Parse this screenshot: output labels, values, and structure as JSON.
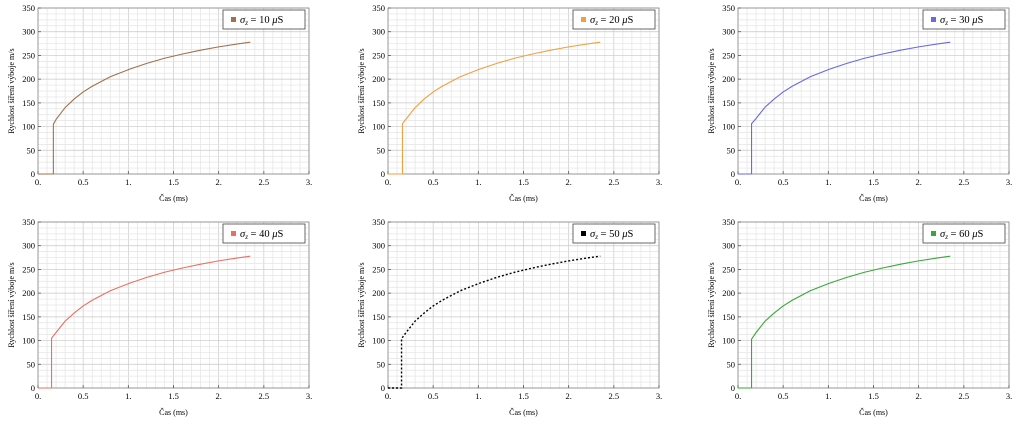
{
  "chart_data": [
    {
      "type": "line",
      "legend": "σz = 10 μS",
      "legend_parts": {
        "sym": "σ",
        "sub": "z",
        "rest": " = 10 ",
        "mu": "μ",
        "unit": "S"
      },
      "xlabel": "Čas (ms)",
      "ylabel": "Rychlost šíření výboje m/s",
      "xlim": [
        0,
        3
      ],
      "ylim": [
        0,
        350
      ],
      "xticks": [
        "0.",
        "0.5",
        "1.",
        "1.5",
        "2.",
        "2.5",
        "3."
      ],
      "yticks": [
        "0",
        "50",
        "100",
        "150",
        "200",
        "250",
        "300",
        "350"
      ],
      "grid": true,
      "legend_position": "top-right",
      "series": [
        {
          "color": "#a0714e",
          "style": "solid",
          "x": [
            0.0,
            0.17,
            0.17,
            0.2,
            0.3,
            0.4,
            0.5,
            0.6,
            0.8,
            1.0,
            1.2,
            1.4,
            1.6,
            1.8,
            2.0,
            2.2,
            2.35
          ],
          "y": [
            0,
            0,
            105,
            115,
            140,
            158,
            173,
            185,
            205,
            220,
            233,
            244,
            253,
            261,
            268,
            274,
            278
          ]
        }
      ]
    },
    {
      "type": "line",
      "legend": "σz = 20 μS",
      "legend_parts": {
        "sym": "σ",
        "sub": "z",
        "rest": " = 20 ",
        "mu": "μ",
        "unit": "S"
      },
      "xlabel": "Čas (ms)",
      "ylabel": "Rychlost šíření výboje m/s",
      "xlim": [
        0,
        3
      ],
      "ylim": [
        0,
        350
      ],
      "xticks": [
        "0.",
        "0.5",
        "1.",
        "1.5",
        "2.",
        "2.5",
        "3."
      ],
      "yticks": [
        "0",
        "50",
        "100",
        "150",
        "200",
        "250",
        "300",
        "350"
      ],
      "grid": true,
      "legend_position": "top-right",
      "series": [
        {
          "color": "#f0a040",
          "style": "solid",
          "x": [
            0.0,
            0.16,
            0.16,
            0.2,
            0.3,
            0.4,
            0.5,
            0.6,
            0.8,
            1.0,
            1.2,
            1.4,
            1.6,
            1.8,
            2.0,
            2.2,
            2.35
          ],
          "y": [
            0,
            0,
            106,
            116,
            140,
            158,
            173,
            185,
            205,
            220,
            233,
            244,
            253,
            261,
            268,
            274,
            278
          ]
        }
      ]
    },
    {
      "type": "line",
      "legend": "σz = 30 μS",
      "legend_parts": {
        "sym": "σ",
        "sub": "z",
        "rest": " = 30 ",
        "mu": "μ",
        "unit": "S"
      },
      "xlabel": "Čas (ms)",
      "ylabel": "Rychlost šíření výboje m/s",
      "xlim": [
        0,
        3
      ],
      "ylim": [
        0,
        350
      ],
      "xticks": [
        "0.",
        "0.5",
        "1.",
        "1.5",
        "2.",
        "2.5",
        "3."
      ],
      "yticks": [
        "0",
        "50",
        "100",
        "150",
        "200",
        "250",
        "300",
        "350"
      ],
      "grid": true,
      "legend_position": "top-right",
      "series": [
        {
          "color": "#6a6ae0",
          "style": "solid",
          "x": [
            0.0,
            0.15,
            0.15,
            0.2,
            0.3,
            0.4,
            0.5,
            0.6,
            0.8,
            1.0,
            1.2,
            1.4,
            1.6,
            1.8,
            2.0,
            2.2,
            2.35
          ],
          "y": [
            0,
            0,
            106,
            117,
            141,
            158,
            173,
            185,
            205,
            220,
            233,
            244,
            253,
            261,
            268,
            274,
            278
          ]
        }
      ]
    },
    {
      "type": "line",
      "legend": "σz = 40 μS",
      "legend_parts": {
        "sym": "σ",
        "sub": "z",
        "rest": " = 40 ",
        "mu": "μ",
        "unit": "S"
      },
      "xlabel": "Čas (ms)",
      "ylabel": "Rychlost šíření výboje m/s",
      "xlim": [
        0,
        3
      ],
      "ylim": [
        0,
        350
      ],
      "xticks": [
        "0.",
        "0.5",
        "1.",
        "1.5",
        "2.",
        "2.5",
        "3."
      ],
      "yticks": [
        "0",
        "50",
        "100",
        "150",
        "200",
        "250",
        "300",
        "350"
      ],
      "grid": true,
      "legend_position": "top-right",
      "series": [
        {
          "color": "#e87060",
          "style": "solid",
          "x": [
            0.0,
            0.15,
            0.15,
            0.2,
            0.3,
            0.4,
            0.5,
            0.6,
            0.8,
            1.0,
            1.2,
            1.4,
            1.6,
            1.8,
            2.0,
            2.2,
            2.35
          ],
          "y": [
            0,
            0,
            105,
            117,
            141,
            158,
            173,
            185,
            205,
            220,
            233,
            244,
            253,
            261,
            268,
            274,
            278
          ]
        }
      ]
    },
    {
      "type": "line",
      "legend": "σz = 50 μS",
      "legend_parts": {
        "sym": "σ",
        "sub": "z",
        "rest": " = 50 ",
        "mu": "μ",
        "unit": "S"
      },
      "xlabel": "Čas (ms)",
      "ylabel": "Rychlost šíření výboje m/s",
      "xlim": [
        0,
        3
      ],
      "ylim": [
        0,
        350
      ],
      "xticks": [
        "0.",
        "0.5",
        "1.",
        "1.5",
        "2.",
        "2.5",
        "3."
      ],
      "yticks": [
        "0",
        "50",
        "100",
        "150",
        "200",
        "250",
        "300",
        "350"
      ],
      "grid": true,
      "legend_position": "top-right",
      "series": [
        {
          "color": "#000000",
          "style": "dotted",
          "x": [
            0.0,
            0.15,
            0.15,
            0.2,
            0.3,
            0.4,
            0.5,
            0.6,
            0.8,
            1.0,
            1.2,
            1.4,
            1.6,
            1.8,
            2.0,
            2.2,
            2.35
          ],
          "y": [
            0,
            0,
            104,
            117,
            141,
            158,
            173,
            185,
            205,
            220,
            233,
            244,
            253,
            261,
            268,
            274,
            278
          ]
        }
      ]
    },
    {
      "type": "line",
      "legend": "σz = 60 μS",
      "legend_parts": {
        "sym": "σ",
        "sub": "z",
        "rest": " = 60 ",
        "mu": "μ",
        "unit": "S"
      },
      "xlabel": "Čas (ms)",
      "ylabel": "Rychlost šíření výboje m/s",
      "xlim": [
        0,
        3
      ],
      "ylim": [
        0,
        350
      ],
      "xticks": [
        "0.",
        "0.5",
        "1.",
        "1.5",
        "2.",
        "2.5",
        "3."
      ],
      "yticks": [
        "0",
        "50",
        "100",
        "150",
        "200",
        "250",
        "300",
        "350"
      ],
      "grid": true,
      "legend_position": "top-right",
      "series": [
        {
          "color": "#3aa63a",
          "style": "solid",
          "x": [
            0.0,
            0.15,
            0.15,
            0.2,
            0.3,
            0.4,
            0.5,
            0.6,
            0.8,
            1.0,
            1.2,
            1.4,
            1.6,
            1.8,
            2.0,
            2.2,
            2.35
          ],
          "y": [
            0,
            0,
            103,
            117,
            141,
            158,
            173,
            185,
            205,
            220,
            233,
            244,
            253,
            261,
            268,
            274,
            278
          ]
        }
      ]
    }
  ]
}
